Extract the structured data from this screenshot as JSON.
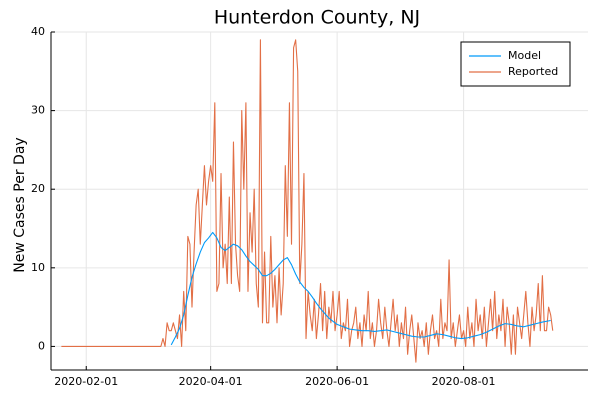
{
  "chart_data": {
    "type": "line",
    "title": "Hunterdon County, NJ",
    "xlabel": "",
    "ylabel": "New Cases Per Day",
    "xlim": [
      "2020-01-15",
      "2020-09-30"
    ],
    "ylim": [
      -3,
      40
    ],
    "xticks": [
      "2020-02-01",
      "2020-04-01",
      "2020-06-01",
      "2020-08-01"
    ],
    "yticks": [
      0,
      10,
      20,
      30,
      40
    ],
    "grid": true,
    "legend_position": "top-right",
    "series": [
      {
        "name": "Model",
        "color": "#009af9",
        "points": [
          [
            "2020-03-13",
            0.2
          ],
          [
            "2020-03-15",
            1.2
          ],
          [
            "2020-03-17",
            2.3
          ],
          [
            "2020-03-19",
            4.0
          ],
          [
            "2020-03-21",
            6.5
          ],
          [
            "2020-03-23",
            8.8
          ],
          [
            "2020-03-25",
            10.5
          ],
          [
            "2020-03-27",
            12.0
          ],
          [
            "2020-03-29",
            13.2
          ],
          [
            "2020-03-31",
            13.8
          ],
          [
            "2020-04-02",
            14.5
          ],
          [
            "2020-04-04",
            13.8
          ],
          [
            "2020-04-06",
            12.6
          ],
          [
            "2020-04-08",
            12.2
          ],
          [
            "2020-04-10",
            12.6
          ],
          [
            "2020-04-12",
            13.0
          ],
          [
            "2020-04-14",
            12.8
          ],
          [
            "2020-04-16",
            12.3
          ],
          [
            "2020-04-18",
            11.5
          ],
          [
            "2020-04-20",
            10.8
          ],
          [
            "2020-04-22",
            10.3
          ],
          [
            "2020-04-24",
            9.8
          ],
          [
            "2020-04-26",
            9.0
          ],
          [
            "2020-04-28",
            9.0
          ],
          [
            "2020-04-30",
            9.3
          ],
          [
            "2020-05-02",
            9.8
          ],
          [
            "2020-05-04",
            10.4
          ],
          [
            "2020-05-06",
            11.0
          ],
          [
            "2020-05-08",
            11.3
          ],
          [
            "2020-05-10",
            10.4
          ],
          [
            "2020-05-12",
            9.2
          ],
          [
            "2020-05-14",
            8.2
          ],
          [
            "2020-05-16",
            7.5
          ],
          [
            "2020-05-18",
            7.0
          ],
          [
            "2020-05-20",
            6.3
          ],
          [
            "2020-05-22",
            5.5
          ],
          [
            "2020-05-24",
            4.8
          ],
          [
            "2020-05-26",
            4.2
          ],
          [
            "2020-05-28",
            3.6
          ],
          [
            "2020-05-30",
            3.2
          ],
          [
            "2020-06-01",
            2.8
          ],
          [
            "2020-06-03",
            2.6
          ],
          [
            "2020-06-05",
            2.4
          ],
          [
            "2020-06-07",
            2.2
          ],
          [
            "2020-06-10",
            2.1
          ],
          [
            "2020-06-13",
            2.0
          ],
          [
            "2020-06-16",
            2.0
          ],
          [
            "2020-06-19",
            1.9
          ],
          [
            "2020-06-22",
            2.0
          ],
          [
            "2020-06-25",
            2.1
          ],
          [
            "2020-06-28",
            1.9
          ],
          [
            "2020-07-01",
            1.7
          ],
          [
            "2020-07-04",
            1.5
          ],
          [
            "2020-07-07",
            1.3
          ],
          [
            "2020-07-10",
            1.2
          ],
          [
            "2020-07-13",
            1.2
          ],
          [
            "2020-07-16",
            1.4
          ],
          [
            "2020-07-19",
            1.6
          ],
          [
            "2020-07-22",
            1.5
          ],
          [
            "2020-07-25",
            1.3
          ],
          [
            "2020-07-28",
            1.1
          ],
          [
            "2020-07-31",
            1.0
          ],
          [
            "2020-08-03",
            1.1
          ],
          [
            "2020-08-06",
            1.3
          ],
          [
            "2020-08-09",
            1.5
          ],
          [
            "2020-08-12",
            1.8
          ],
          [
            "2020-08-15",
            2.2
          ],
          [
            "2020-08-18",
            2.6
          ],
          [
            "2020-08-21",
            2.9
          ],
          [
            "2020-08-24",
            2.8
          ],
          [
            "2020-08-27",
            2.6
          ],
          [
            "2020-08-30",
            2.5
          ],
          [
            "2020-09-02",
            2.7
          ],
          [
            "2020-09-05",
            2.9
          ],
          [
            "2020-09-08",
            3.1
          ],
          [
            "2020-09-12",
            3.3
          ]
        ]
      },
      {
        "name": "Reported",
        "color": "#e26f46",
        "points": [
          [
            "2020-01-20",
            0
          ],
          [
            "2020-03-07",
            0
          ],
          [
            "2020-03-08",
            0
          ],
          [
            "2020-03-09",
            1
          ],
          [
            "2020-03-10",
            0
          ],
          [
            "2020-03-11",
            3
          ],
          [
            "2020-03-12",
            2
          ],
          [
            "2020-03-13",
            2
          ],
          [
            "2020-03-14",
            3
          ],
          [
            "2020-03-15",
            2
          ],
          [
            "2020-03-16",
            1
          ],
          [
            "2020-03-17",
            4
          ],
          [
            "2020-03-18",
            0
          ],
          [
            "2020-03-19",
            7
          ],
          [
            "2020-03-20",
            2
          ],
          [
            "2020-03-21",
            14
          ],
          [
            "2020-03-22",
            13
          ],
          [
            "2020-03-23",
            5
          ],
          [
            "2020-03-24",
            12
          ],
          [
            "2020-03-25",
            18
          ],
          [
            "2020-03-26",
            20
          ],
          [
            "2020-03-27",
            13
          ],
          [
            "2020-03-28",
            18
          ],
          [
            "2020-03-29",
            23
          ],
          [
            "2020-03-30",
            18
          ],
          [
            "2020-03-31",
            21
          ],
          [
            "2020-04-01",
            23
          ],
          [
            "2020-04-02",
            21
          ],
          [
            "2020-04-03",
            31
          ],
          [
            "2020-04-04",
            7
          ],
          [
            "2020-04-05",
            8
          ],
          [
            "2020-04-06",
            22
          ],
          [
            "2020-04-07",
            10
          ],
          [
            "2020-04-08",
            13
          ],
          [
            "2020-04-09",
            8
          ],
          [
            "2020-04-10",
            19
          ],
          [
            "2020-04-11",
            8
          ],
          [
            "2020-04-12",
            26
          ],
          [
            "2020-04-13",
            13
          ],
          [
            "2020-04-14",
            9
          ],
          [
            "2020-04-15",
            7
          ],
          [
            "2020-04-16",
            30
          ],
          [
            "2020-04-17",
            20
          ],
          [
            "2020-04-18",
            31
          ],
          [
            "2020-04-19",
            7
          ],
          [
            "2020-04-20",
            17
          ],
          [
            "2020-04-21",
            12
          ],
          [
            "2020-04-22",
            20
          ],
          [
            "2020-04-23",
            8
          ],
          [
            "2020-04-24",
            5
          ],
          [
            "2020-04-25",
            39
          ],
          [
            "2020-04-26",
            3
          ],
          [
            "2020-04-27",
            12
          ],
          [
            "2020-04-28",
            3
          ],
          [
            "2020-04-29",
            3
          ],
          [
            "2020-04-30",
            14
          ],
          [
            "2020-05-01",
            5
          ],
          [
            "2020-05-02",
            9
          ],
          [
            "2020-05-03",
            3
          ],
          [
            "2020-05-04",
            10
          ],
          [
            "2020-05-05",
            4
          ],
          [
            "2020-05-06",
            8
          ],
          [
            "2020-05-07",
            23
          ],
          [
            "2020-05-08",
            14
          ],
          [
            "2020-05-09",
            31
          ],
          [
            "2020-05-10",
            13
          ],
          [
            "2020-05-11",
            38
          ],
          [
            "2020-05-12",
            39
          ],
          [
            "2020-05-13",
            35
          ],
          [
            "2020-05-14",
            8
          ],
          [
            "2020-05-15",
            13
          ],
          [
            "2020-05-16",
            22
          ],
          [
            "2020-05-17",
            1
          ],
          [
            "2020-05-18",
            7
          ],
          [
            "2020-05-19",
            4
          ],
          [
            "2020-05-20",
            2
          ],
          [
            "2020-05-21",
            6
          ],
          [
            "2020-05-22",
            1
          ],
          [
            "2020-05-23",
            4
          ],
          [
            "2020-05-24",
            8
          ],
          [
            "2020-05-25",
            2
          ],
          [
            "2020-05-26",
            7
          ],
          [
            "2020-05-27",
            1
          ],
          [
            "2020-05-28",
            5
          ],
          [
            "2020-05-29",
            3
          ],
          [
            "2020-05-30",
            7
          ],
          [
            "2020-05-31",
            2
          ],
          [
            "2020-06-01",
            4
          ],
          [
            "2020-06-02",
            7
          ],
          [
            "2020-06-03",
            1
          ],
          [
            "2020-06-04",
            3
          ],
          [
            "2020-06-05",
            2
          ],
          [
            "2020-06-06",
            6
          ],
          [
            "2020-06-07",
            0
          ],
          [
            "2020-06-08",
            2
          ],
          [
            "2020-06-09",
            3
          ],
          [
            "2020-06-10",
            5
          ],
          [
            "2020-06-11",
            1
          ],
          [
            "2020-06-12",
            3
          ],
          [
            "2020-06-13",
            0
          ],
          [
            "2020-06-14",
            4
          ],
          [
            "2020-06-15",
            2
          ],
          [
            "2020-06-16",
            7
          ],
          [
            "2020-06-17",
            1
          ],
          [
            "2020-06-18",
            3
          ],
          [
            "2020-06-19",
            0
          ],
          [
            "2020-06-20",
            2
          ],
          [
            "2020-06-21",
            6
          ],
          [
            "2020-06-22",
            3
          ],
          [
            "2020-06-23",
            1
          ],
          [
            "2020-06-24",
            5
          ],
          [
            "2020-06-25",
            2
          ],
          [
            "2020-06-26",
            0
          ],
          [
            "2020-06-27",
            3
          ],
          [
            "2020-06-28",
            6
          ],
          [
            "2020-06-29",
            2
          ],
          [
            "2020-06-30",
            4
          ],
          [
            "2020-07-01",
            0
          ],
          [
            "2020-07-02",
            3
          ],
          [
            "2020-07-03",
            1
          ],
          [
            "2020-07-04",
            5
          ],
          [
            "2020-07-05",
            -1
          ],
          [
            "2020-07-06",
            2
          ],
          [
            "2020-07-07",
            4
          ],
          [
            "2020-07-08",
            1
          ],
          [
            "2020-07-09",
            -2
          ],
          [
            "2020-07-10",
            3
          ],
          [
            "2020-07-11",
            1
          ],
          [
            "2020-07-12",
            2
          ],
          [
            "2020-07-13",
            0
          ],
          [
            "2020-07-14",
            3
          ],
          [
            "2020-07-15",
            -1
          ],
          [
            "2020-07-16",
            2
          ],
          [
            "2020-07-17",
            4
          ],
          [
            "2020-07-18",
            1
          ],
          [
            "2020-07-19",
            2
          ],
          [
            "2020-07-20",
            0
          ],
          [
            "2020-07-21",
            6
          ],
          [
            "2020-07-22",
            1
          ],
          [
            "2020-07-23",
            3
          ],
          [
            "2020-07-24",
            2
          ],
          [
            "2020-07-25",
            11
          ],
          [
            "2020-07-26",
            1
          ],
          [
            "2020-07-27",
            3
          ],
          [
            "2020-07-28",
            0
          ],
          [
            "2020-07-29",
            2
          ],
          [
            "2020-07-30",
            4
          ],
          [
            "2020-07-31",
            1
          ],
          [
            "2020-08-01",
            2
          ],
          [
            "2020-08-02",
            0
          ],
          [
            "2020-08-03",
            5
          ],
          [
            "2020-08-04",
            1
          ],
          [
            "2020-08-05",
            3
          ],
          [
            "2020-08-06",
            0
          ],
          [
            "2020-08-07",
            6
          ],
          [
            "2020-08-08",
            2
          ],
          [
            "2020-08-09",
            4
          ],
          [
            "2020-08-10",
            1
          ],
          [
            "2020-08-11",
            5
          ],
          [
            "2020-08-12",
            0
          ],
          [
            "2020-08-13",
            3
          ],
          [
            "2020-08-14",
            6
          ],
          [
            "2020-08-15",
            2
          ],
          [
            "2020-08-16",
            7
          ],
          [
            "2020-08-17",
            1
          ],
          [
            "2020-08-18",
            4
          ],
          [
            "2020-08-19",
            2
          ],
          [
            "2020-08-20",
            6
          ],
          [
            "2020-08-21",
            0
          ],
          [
            "2020-08-22",
            5
          ],
          [
            "2020-08-23",
            3
          ],
          [
            "2020-08-24",
            -1
          ],
          [
            "2020-08-25",
            4
          ],
          [
            "2020-08-26",
            -1
          ],
          [
            "2020-08-27",
            5
          ],
          [
            "2020-08-28",
            3
          ],
          [
            "2020-08-29",
            1
          ],
          [
            "2020-08-30",
            4
          ],
          [
            "2020-08-31",
            7
          ],
          [
            "2020-09-01",
            3
          ],
          [
            "2020-09-02",
            0
          ],
          [
            "2020-09-03",
            5
          ],
          [
            "2020-09-04",
            2
          ],
          [
            "2020-09-05",
            4
          ],
          [
            "2020-09-06",
            8
          ],
          [
            "2020-09-07",
            2
          ],
          [
            "2020-09-08",
            9
          ],
          [
            "2020-09-09",
            2
          ],
          [
            "2020-09-10",
            2
          ],
          [
            "2020-09-11",
            5
          ],
          [
            "2020-09-12",
            4
          ],
          [
            "2020-09-13",
            2
          ]
        ]
      }
    ]
  }
}
